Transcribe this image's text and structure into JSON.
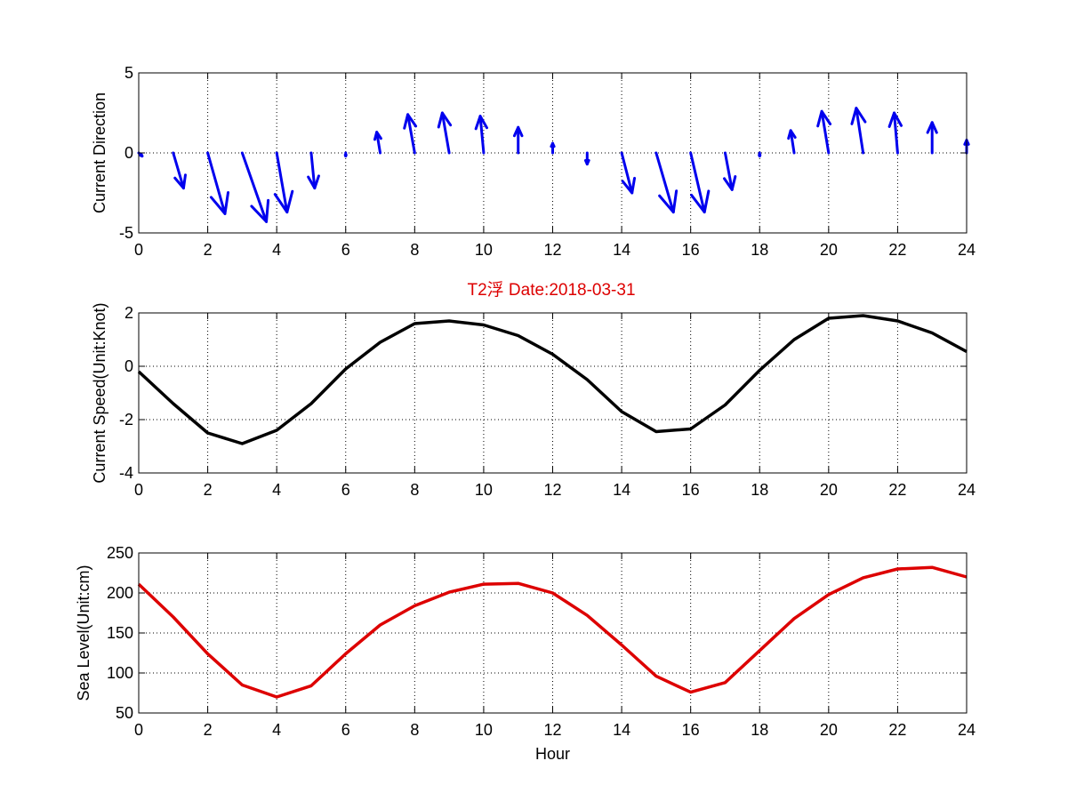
{
  "figure_title": "T2浮    Date:2018-03-31",
  "colors": {
    "quiver": "#0000ee",
    "speed_line": "#000000",
    "sea_level_line": "#dd0000",
    "title": "#dd0000",
    "grid": "#000000"
  },
  "chart_data": [
    {
      "type": "quiver",
      "title": "",
      "xlabel": "",
      "ylabel": "Current Direction",
      "xlim": [
        0,
        24
      ],
      "ylim": [
        -5,
        5
      ],
      "xticks": [
        0,
        2,
        4,
        6,
        8,
        10,
        12,
        14,
        16,
        18,
        20,
        22,
        24
      ],
      "yticks": [
        -5,
        0,
        5
      ],
      "grid": true,
      "x": [
        0,
        1,
        2,
        3,
        4,
        5,
        6,
        7,
        8,
        9,
        10,
        11,
        12,
        13,
        14,
        15,
        16,
        17,
        18,
        19,
        20,
        21,
        22,
        23,
        24
      ],
      "u": [
        0.1,
        0.3,
        0.5,
        0.7,
        0.3,
        0.1,
        0,
        -0.1,
        -0.2,
        -0.2,
        -0.1,
        0,
        0,
        0,
        0.3,
        0.5,
        0.4,
        0.2,
        0,
        -0.1,
        -0.2,
        -0.2,
        -0.1,
        0,
        0
      ],
      "v": [
        -0.2,
        -2.2,
        -3.8,
        -4.3,
        -3.7,
        -2.2,
        -0.2,
        1.3,
        2.4,
        2.5,
        2.3,
        1.6,
        0.6,
        -0.7,
        -2.5,
        -3.7,
        -3.7,
        -2.3,
        -0.2,
        1.4,
        2.6,
        2.8,
        2.5,
        1.9,
        0.8
      ]
    },
    {
      "type": "line",
      "title": "",
      "xlabel": "",
      "ylabel": "Current Speed(Unit:Knot)",
      "xlim": [
        0,
        24
      ],
      "ylim": [
        -4,
        2
      ],
      "xticks": [
        0,
        2,
        4,
        6,
        8,
        10,
        12,
        14,
        16,
        18,
        20,
        22,
        24
      ],
      "yticks": [
        -4,
        -2,
        0,
        2
      ],
      "grid": true,
      "x": [
        0,
        1,
        2,
        3,
        4,
        5,
        6,
        7,
        8,
        9,
        10,
        11,
        12,
        13,
        14,
        15,
        16,
        17,
        18,
        19,
        20,
        21,
        22,
        23,
        24
      ],
      "series": [
        {
          "values": [
            -0.2,
            -1.4,
            -2.5,
            -2.9,
            -2.4,
            -1.4,
            -0.1,
            0.9,
            1.6,
            1.7,
            1.55,
            1.15,
            0.45,
            -0.5,
            -1.7,
            -2.45,
            -2.35,
            -1.45,
            -0.15,
            1.0,
            1.8,
            1.9,
            1.7,
            1.25,
            0.55
          ]
        }
      ]
    },
    {
      "type": "line",
      "title": "",
      "xlabel": "Hour",
      "ylabel": "Sea Level(Unit:cm)",
      "xlim": [
        0,
        24
      ],
      "ylim": [
        50,
        250
      ],
      "xticks": [
        0,
        2,
        4,
        6,
        8,
        10,
        12,
        14,
        16,
        18,
        20,
        22,
        24
      ],
      "yticks": [
        50,
        100,
        150,
        200,
        250
      ],
      "grid": true,
      "x": [
        0,
        1,
        2,
        3,
        4,
        5,
        6,
        7,
        8,
        9,
        10,
        11,
        12,
        13,
        14,
        15,
        16,
        17,
        18,
        19,
        20,
        21,
        22,
        23,
        24
      ],
      "series": [
        {
          "values": [
            211,
            170,
            124,
            85,
            70,
            84,
            124,
            160,
            184,
            201,
            211,
            212,
            200,
            172,
            135,
            96,
            76,
            88,
            128,
            168,
            198,
            219,
            230,
            232,
            220
          ]
        }
      ]
    }
  ]
}
